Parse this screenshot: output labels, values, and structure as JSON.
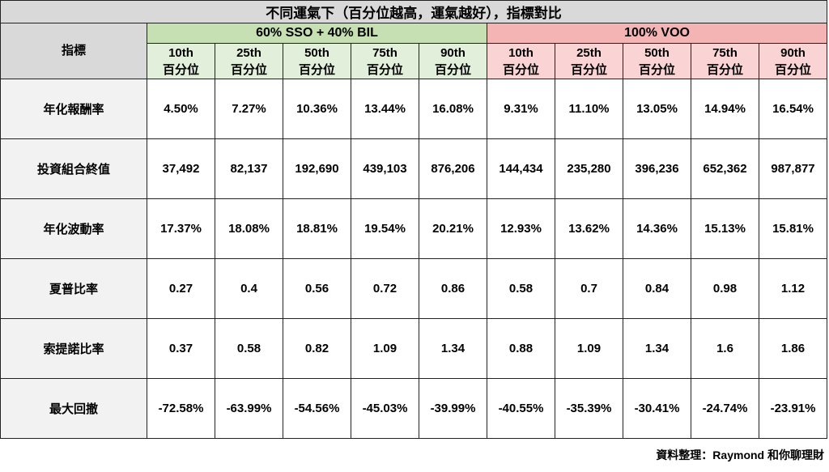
{
  "title": "不同運氣下（百分位越高，運氣越好），指標對比",
  "corner": "指標",
  "groups": [
    {
      "name": "60% SSO + 40% BIL",
      "columns": [
        {
          "pct": "10th",
          "unit": "百分位"
        },
        {
          "pct": "25th",
          "unit": "百分位"
        },
        {
          "pct": "50th",
          "unit": "百分位"
        },
        {
          "pct": "75th",
          "unit": "百分位"
        },
        {
          "pct": "90th",
          "unit": "百分位"
        }
      ]
    },
    {
      "name": "100% VOO",
      "columns": [
        {
          "pct": "10th",
          "unit": "百分位"
        },
        {
          "pct": "25th",
          "unit": "百分位"
        },
        {
          "pct": "50th",
          "unit": "百分位"
        },
        {
          "pct": "75th",
          "unit": "百分位"
        },
        {
          "pct": "90th",
          "unit": "百分位"
        }
      ]
    }
  ],
  "rows": [
    {
      "label": "年化報酬率",
      "cells": [
        "4.50%",
        "7.27%",
        "10.36%",
        "13.44%",
        "16.08%",
        "9.31%",
        "11.10%",
        "13.05%",
        "14.94%",
        "16.54%"
      ]
    },
    {
      "label": "投資組合終值",
      "cells": [
        "37,492",
        "82,137",
        "192,690",
        "439,103",
        "876,206",
        "144,434",
        "235,280",
        "396,236",
        "652,362",
        "987,877"
      ]
    },
    {
      "label": "年化波動率",
      "cells": [
        "17.37%",
        "18.08%",
        "18.81%",
        "19.54%",
        "20.21%",
        "12.93%",
        "13.62%",
        "14.36%",
        "15.13%",
        "15.81%"
      ]
    },
    {
      "label": "夏普比率",
      "cells": [
        "0.27",
        "0.4",
        "0.56",
        "0.72",
        "0.86",
        "0.58",
        "0.7",
        "0.84",
        "0.98",
        "1.12"
      ]
    },
    {
      "label": "索提諾比率",
      "cells": [
        "0.37",
        "0.58",
        "0.82",
        "1.09",
        "1.34",
        "0.88",
        "1.09",
        "1.34",
        "1.6",
        "1.86"
      ]
    },
    {
      "label": "最大回撤",
      "cells": [
        "-72.58%",
        "-63.99%",
        "-54.56%",
        "-45.03%",
        "-39.99%",
        "-40.55%",
        "-35.39%",
        "-30.41%",
        "-24.74%",
        "-23.91%"
      ]
    }
  ],
  "footer": "資料整理：Raymond 和你聊理財"
}
